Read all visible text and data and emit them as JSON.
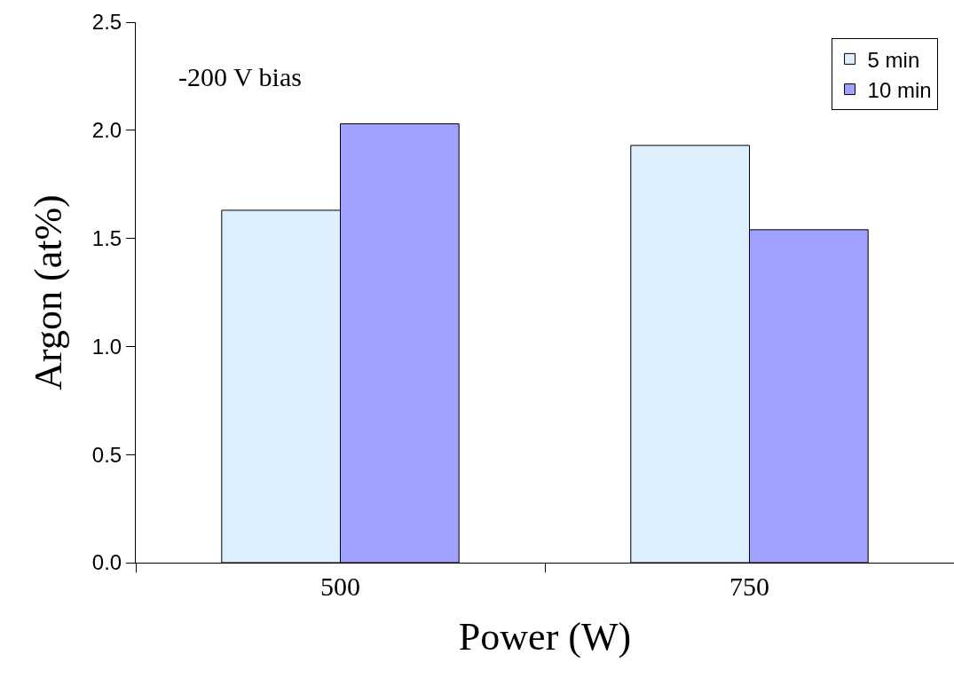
{
  "chart_data": {
    "type": "bar",
    "xlabel": "Power (W)",
    "ylabel": "Argon (at%)",
    "categories": [
      "500",
      "750"
    ],
    "series": [
      {
        "name": "5 min",
        "color": "#ddeefc",
        "values": [
          1.63,
          1.93
        ]
      },
      {
        "name": "10 min",
        "color": "#a0a0ff",
        "values": [
          2.03,
          1.54
        ]
      }
    ],
    "ylim": [
      0,
      2.5
    ],
    "yticks": [
      {
        "value": 0,
        "label": "0.0"
      },
      {
        "value": 0.5,
        "label": "0.5"
      },
      {
        "value": 1,
        "label": "1.0"
      },
      {
        "value": 1.5,
        "label": "1.5"
      },
      {
        "value": 2,
        "label": "2.0"
      },
      {
        "value": 2.5,
        "label": "2.5"
      }
    ],
    "legend": "top right",
    "annotations": [
      "-200 V bias"
    ]
  }
}
